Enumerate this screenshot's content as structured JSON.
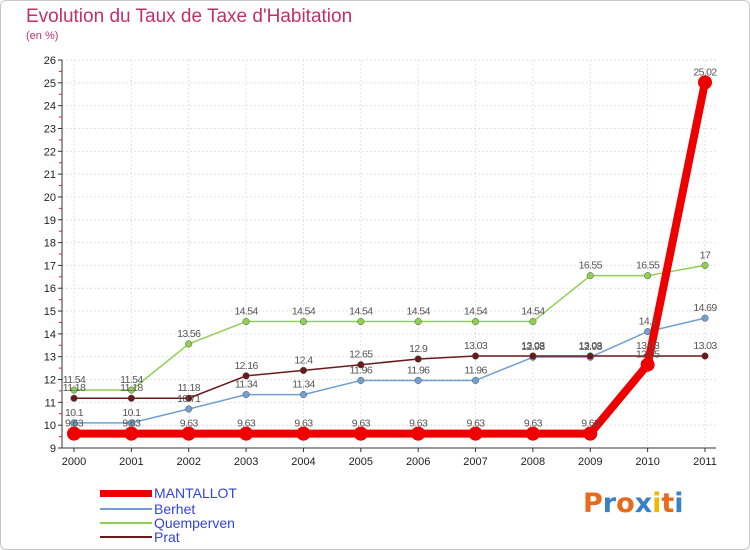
{
  "chart_data": {
    "type": "line",
    "title": "Evolution du Taux de Taxe d'Habitation",
    "subtitle": "(en %)",
    "xlabel": "",
    "ylabel": "",
    "categories": [
      "2000",
      "2001",
      "2002",
      "2003",
      "2004",
      "2005",
      "2006",
      "2007",
      "2008",
      "2009",
      "2010",
      "2011"
    ],
    "ylim": [
      9,
      26
    ],
    "yticks": [
      "9",
      "10",
      "11",
      "12",
      "13",
      "14",
      "15",
      "16",
      "17",
      "18",
      "19",
      "20",
      "21",
      "22",
      "23",
      "24",
      "25",
      "26"
    ],
    "grid": true,
    "legend_position": "bottom-left",
    "series": [
      {
        "name": "Quemperven",
        "color": "#90d050",
        "values": [
          11.54,
          11.54,
          13.56,
          14.54,
          14.54,
          14.54,
          14.54,
          14.54,
          14.54,
          16.55,
          16.55,
          17
        ],
        "labels": [
          "11.54",
          "11.54",
          "13.56",
          "14.54",
          "14.54",
          "14.54",
          "14.54",
          "14.54",
          "14.54",
          "16.55",
          "16.55",
          "17"
        ]
      },
      {
        "name": "Berhet",
        "color": "#6fa0d0",
        "values": [
          10.1,
          10.1,
          10.71,
          11.34,
          11.34,
          11.96,
          11.96,
          11.96,
          12.98,
          12.98,
          14.1,
          14.69
        ],
        "labels": [
          "10.1",
          "10.1",
          "10.71",
          "11.34",
          "11.34",
          "11.96",
          "11.96",
          "11.96",
          "12.98",
          "12.98",
          "14.1",
          "14.69"
        ]
      },
      {
        "name": "Prat",
        "color": "#6a1a1a",
        "values": [
          11.18,
          11.18,
          11.18,
          12.16,
          12.4,
          12.65,
          12.9,
          13.03,
          13.03,
          13.03,
          13.03,
          13.03
        ],
        "labels": [
          "11.18",
          "11.18",
          "11.18",
          "12.16",
          "12.4",
          "12.65",
          "12.9",
          "13.03",
          "13.03",
          "13.03",
          "13.03",
          "13.03"
        ]
      },
      {
        "name": "MANTALLOT",
        "color": "#ee0000",
        "values": [
          9.63,
          9.63,
          9.63,
          9.63,
          9.63,
          9.63,
          9.63,
          9.63,
          9.63,
          9.63,
          12.65,
          25.02
        ],
        "labels": [
          "9.63",
          "9.63",
          "9.63",
          "9.63",
          "9.63",
          "9.63",
          "9.63",
          "9.63",
          "9.63",
          "9.63",
          "12.65",
          "25.02"
        ]
      }
    ]
  },
  "legend": {
    "items": [
      {
        "label": "MANTALLOT",
        "color": "#ee0000",
        "text_color": "#3344dd"
      },
      {
        "label": "Berhet",
        "color": "#6fa0d0",
        "text_color": "#3344dd"
      },
      {
        "label": "Quemperven",
        "color": "#90d050",
        "text_color": "#3344dd"
      },
      {
        "label": "Prat",
        "color": "#6a1a1a",
        "text_color": "#3344dd"
      }
    ]
  },
  "logo": {
    "text": "Proxiti",
    "colors": [
      "#e86a1a",
      "#3a80c8",
      "#e86a1a",
      "#3a80c8",
      "#f0b800",
      "#e86a1a",
      "#3a80c8"
    ]
  }
}
